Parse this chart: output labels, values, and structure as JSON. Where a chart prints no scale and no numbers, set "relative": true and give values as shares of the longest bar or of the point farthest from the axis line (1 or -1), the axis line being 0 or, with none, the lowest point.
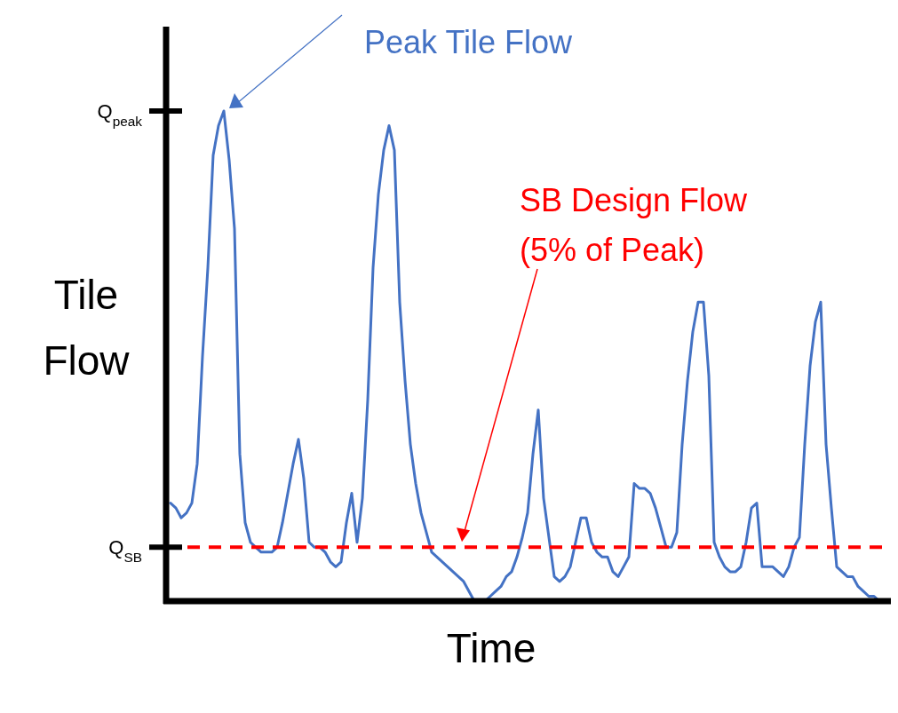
{
  "chart_data": {
    "type": "line",
    "relative": true,
    "xlabel": "Time",
    "ylabel": "Tile\nFlow",
    "categories": [
      null,
      null,
      null,
      null,
      null,
      null,
      null,
      null,
      null,
      null,
      null,
      null,
      null,
      null,
      null,
      null,
      null,
      null,
      null,
      null,
      null,
      null,
      null,
      null,
      null,
      null,
      null,
      null,
      null,
      null,
      null,
      null,
      null,
      null,
      null,
      null,
      null,
      null,
      null,
      null,
      null,
      null,
      null,
      null,
      null,
      null,
      null,
      null,
      null,
      null,
      null,
      null,
      null,
      null,
      null,
      null,
      null,
      null,
      null,
      null,
      null,
      null,
      null,
      null,
      null,
      null,
      null,
      null,
      null,
      null,
      null,
      null,
      null,
      null,
      null,
      null,
      null,
      null,
      null,
      null,
      null,
      null,
      null,
      null,
      null,
      null,
      null,
      null,
      null,
      null,
      null,
      null,
      null,
      null,
      null,
      null,
      null,
      null,
      null,
      null,
      null,
      null,
      null,
      null,
      null,
      null,
      null,
      null,
      null,
      null,
      null,
      null,
      null,
      null,
      null,
      null,
      null,
      null,
      null,
      null,
      null,
      null,
      null,
      null,
      null,
      null,
      null,
      null,
      null,
      null,
      null,
      null,
      null,
      null
    ],
    "series": [
      {
        "color": "#4472c4",
        "values": [
          0.2,
          0.19,
          0.17,
          0.18,
          0.2,
          0.28,
          0.5,
          0.68,
          0.91,
          0.97,
          1,
          0.9,
          0.76,
          0.3,
          0.16,
          0.12,
          0.11,
          0.1,
          0.1,
          0.1,
          0.11,
          0.16,
          0.22,
          0.28,
          0.33,
          0.25,
          0.12,
          0.11,
          0.11,
          0.1,
          0.08,
          0.07,
          0.08,
          0.16,
          0.22,
          0.12,
          0.21,
          0.41,
          0.68,
          0.83,
          0.92,
          0.97,
          0.92,
          0.61,
          0.45,
          0.32,
          0.24,
          0.18,
          0.14,
          0.1,
          0.09,
          0.08,
          0.07,
          0.06,
          0.05,
          0.04,
          0.02,
          0,
          0,
          0,
          0.01,
          0.02,
          0.03,
          0.05,
          0.06,
          0.09,
          0.13,
          0.18,
          0.3,
          0.39,
          0.21,
          0.13,
          0.05,
          0.04,
          0.05,
          0.07,
          0.12,
          0.17,
          0.17,
          0.12,
          0.1,
          0.09,
          0.09,
          0.06,
          0.05,
          0.07,
          0.09,
          0.24,
          0.23,
          0.23,
          0.22,
          0.19,
          0.15,
          0.11,
          0.11,
          0.14,
          0.32,
          0.45,
          0.55,
          0.61,
          0.61,
          0.46,
          0.12,
          0.09,
          0.07,
          0.06,
          0.06,
          0.07,
          0.12,
          0.19,
          0.2,
          0.07,
          0.07,
          0.07,
          0.06,
          0.05,
          0.07,
          0.11,
          0.13,
          0.32,
          0.48,
          0.57,
          0.61,
          0.32,
          0.19,
          0.07,
          0.06,
          0.05,
          0.05,
          0.03,
          0.02,
          0.01,
          0.01,
          0
        ]
      }
    ],
    "ref_lines": [
      {
        "axis": "y",
        "value": 0.11,
        "label": "Q$_{SB}$",
        "color": "#ff0000",
        "line_style": "dashed"
      }
    ],
    "annotations": [
      "Peak Tile Flow",
      "SB Design Flow\n(5% of Peak)",
      "Q$_{peak}$"
    ],
    "grid": false,
    "marker": "none",
    "line_style": "solid"
  }
}
